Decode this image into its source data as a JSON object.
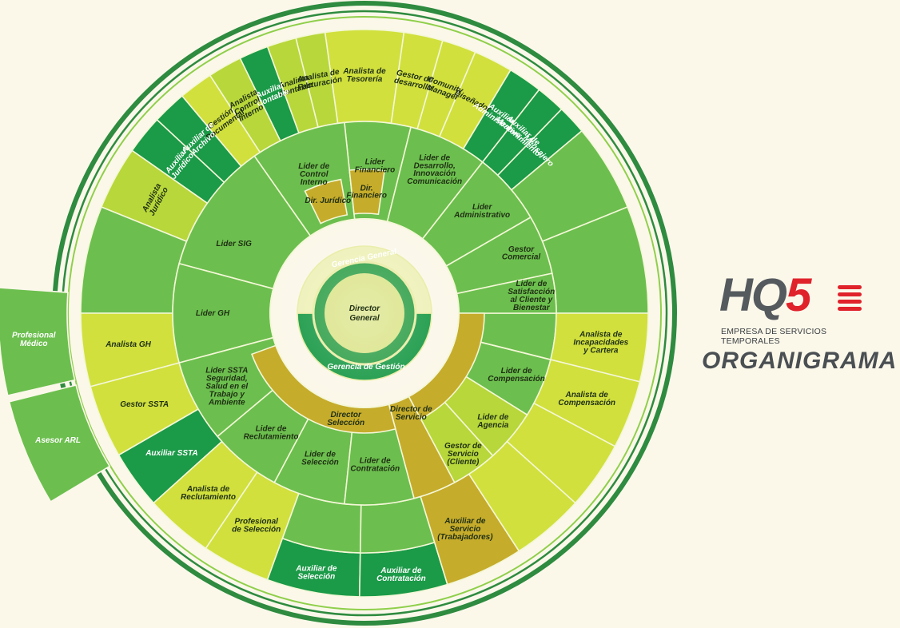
{
  "brand": {
    "logo_letters": "HQ",
    "logo_number": "5",
    "subtitle": "EMPRESA DE SERVICIOS TEMPORALES",
    "title": "ORGANIGRAMA"
  },
  "center": {
    "title": "Director General",
    "ring_top": "Gerencia General",
    "ring_bottom": "Gerencia de Gestión"
  },
  "colors": {
    "dark_green": "#1b9a48",
    "mid_green": "#6cbf4e",
    "light_green": "#b8d73a",
    "lime": "#d1e03d",
    "gold": "#c6ac2b",
    "outline": "#2e8b3f"
  },
  "directors": [
    {
      "label": "Dir. Financiero",
      "color": "gold"
    },
    {
      "label": "Dir. Jurídico",
      "color": "gold"
    },
    {
      "label": "Director Selección",
      "color": "gold"
    },
    {
      "label": "Director de Servicio",
      "color": "gold"
    }
  ],
  "units": [
    {
      "label": "Lider Financiero",
      "color": "mid_green"
    },
    {
      "label": "Lider de Control Interno",
      "color": "mid_green"
    },
    {
      "label": "Lider de Desarrollo, Innovación Comunicación",
      "color": "mid_green"
    },
    {
      "label": "Lider Administrativo",
      "color": "mid_green"
    },
    {
      "label": "Gestor Comercial",
      "color": "mid_green"
    },
    {
      "label": "Lider de Satisfacción al Cliente y Bienestar",
      "color": "mid_green"
    },
    {
      "label": "Lider SIG",
      "color": "mid_green"
    },
    {
      "label": "Lider GH",
      "color": "mid_green"
    },
    {
      "label": "Lider SSTA Seguridad, Salud en el Trabajo y Ambiente",
      "color": "mid_green"
    },
    {
      "label": "Lider de Reclutamiento",
      "color": "mid_green"
    },
    {
      "label": "Lider de Selección",
      "color": "mid_green"
    },
    {
      "label": "Lider de Contratación",
      "color": "mid_green"
    },
    {
      "label": "Lider de Compensación",
      "color": "mid_green"
    },
    {
      "label": "Lider de Agencia",
      "color": "light_green"
    },
    {
      "label": "Gestor de Servicio (Cliente)",
      "color": "light_green"
    }
  ],
  "positions": [
    {
      "label": "Analista de Tesorería",
      "color": "lime"
    },
    {
      "label": "Analista de Facturación",
      "color": "light_green"
    },
    {
      "label": "Analista Contable",
      "color": "light_green"
    },
    {
      "label": "Auxiliar Contable",
      "color": "dark_green"
    },
    {
      "label": "Analista Control Interno",
      "color": "light_green"
    },
    {
      "label": "Gestión Documental",
      "color": "lime"
    },
    {
      "label": "Auxiliar de Archivo",
      "color": "dark_green"
    },
    {
      "label": "Auxiliar Jurídico",
      "color": "dark_green"
    },
    {
      "label": "Analista Jurídico",
      "color": "light_green"
    },
    {
      "label": "Gestor de desarrollo",
      "color": "lime"
    },
    {
      "label": "Comunity Manager",
      "color": "lime"
    },
    {
      "label": "Diseñador",
      "color": "lime"
    },
    {
      "label": "Auxiliar Administrativo",
      "color": "dark_green"
    },
    {
      "label": "Auxiliar de Mantenimiento",
      "color": "dark_green"
    },
    {
      "label": "Mensajero",
      "color": "dark_green"
    },
    {
      "label": "Analista GH",
      "color": "lime"
    },
    {
      "label": "Gestor SSTA",
      "color": "lime"
    },
    {
      "label": "Auxiliar SSTA",
      "color": "dark_green"
    },
    {
      "label": "Analista de Reclutamiento",
      "color": "lime"
    },
    {
      "label": "Profesional de Selección",
      "color": "lime"
    },
    {
      "label": "Auxiliar de Selección",
      "color": "dark_green"
    },
    {
      "label": "Auxiliar de Contratación",
      "color": "dark_green"
    },
    {
      "label": "Auxiliar de Servicio (Trabajadores)",
      "color": "gold"
    },
    {
      "label": "Analista de Incapacidades y Cartera",
      "color": "lime"
    },
    {
      "label": "Analista de Compensación",
      "color": "lime"
    }
  ],
  "external": [
    {
      "label": "Asesor ARL",
      "color": "mid_green"
    },
    {
      "label": "Profesional Médico",
      "color": "mid_green"
    }
  ]
}
